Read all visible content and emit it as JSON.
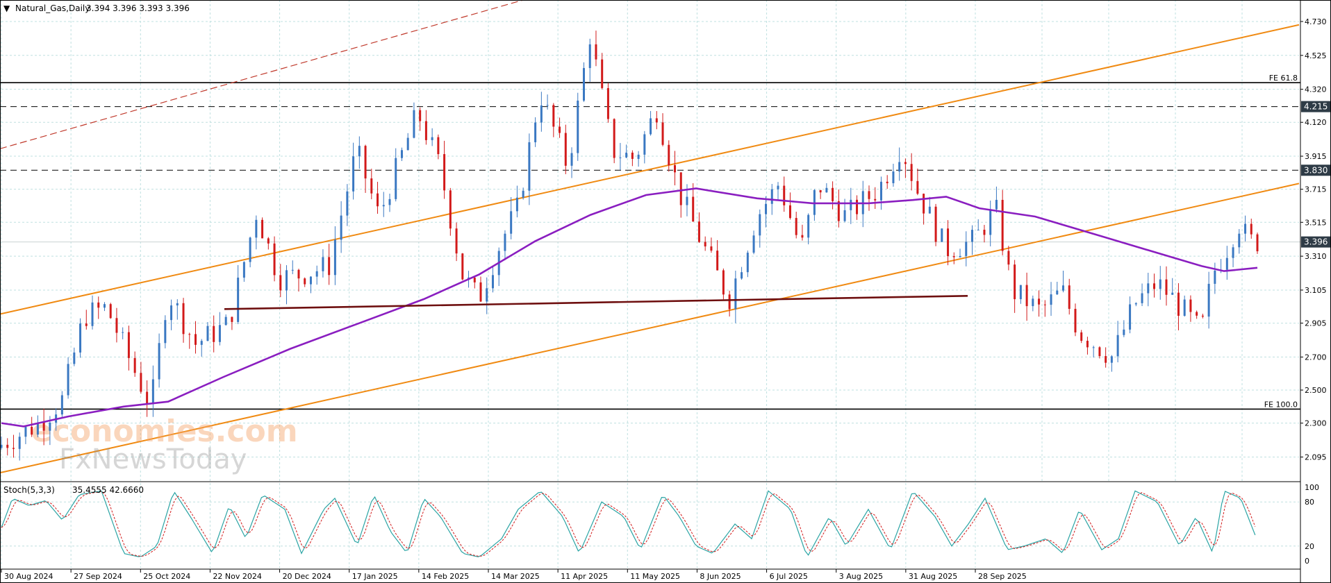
{
  "header": {
    "symbol_title": "Natural_Gas,Daily",
    "ohlc": "3.394 3.396 3.393 3.396",
    "dropdown_glyph": "▼"
  },
  "watermark": {
    "line1": "economies.com",
    "line2": "FxNewsToday"
  },
  "colors": {
    "bull": "#3a78c2",
    "bear": "#d21a1a",
    "ma": "#8a1ec0",
    "channel": "#f08a12",
    "support": "#6e0f0f",
    "upper_dash": "#c0392b",
    "stoch_main": "#2aa4a4",
    "stoch_signal": "#d21a1a",
    "price_tag": "#2e3b46"
  },
  "chart_data": [
    {
      "type": "candlestick",
      "title": "Natural_Gas,Daily",
      "ylim": [
        1.95,
        4.86
      ],
      "y_ticks": [
        "4.730",
        "4.525",
        "4.320",
        "4.120",
        "3.915",
        "3.715",
        "3.515",
        "3.310",
        "3.105",
        "2.905",
        "2.700",
        "2.500",
        "2.300",
        "2.095"
      ],
      "x_ticks": [
        "30 Aug 2024",
        "27 Sep 2024",
        "25 Oct 2024",
        "22 Nov 2024",
        "20 Dec 2024",
        "17 Jan 2025",
        "14 Feb 2025",
        "14 Mar 2025",
        "11 Apr 2025",
        "11 May 2025",
        "8 Jun 2025",
        "6 Jul 2025",
        "3 Aug 2025",
        "31 Aug 2025",
        "28 Sep 2025"
      ],
      "last_price": "3.396",
      "levels": [
        {
          "label": "FE 61.8",
          "value": 4.36,
          "style": "solid"
        },
        {
          "label": "4.215",
          "value": 4.215,
          "style": "dashed",
          "tag": true
        },
        {
          "label": "3.830",
          "value": 3.83,
          "style": "dashed",
          "tag": true
        },
        {
          "label": "FE 100.0",
          "value": 2.385,
          "style": "solid"
        }
      ],
      "trendlines": [
        {
          "name": "channel-upper",
          "points": [
            [
              "Aug 2024",
              2.96
            ],
            [
              "Oct 2025",
              4.71
            ]
          ]
        },
        {
          "name": "channel-lower",
          "points": [
            [
              "Aug 2024",
              2.0
            ],
            [
              "Oct 2025",
              3.75
            ]
          ]
        },
        {
          "name": "upper-dashed",
          "points": [
            [
              "Aug 2024",
              3.96
            ],
            [
              "Mar 2025",
              4.88
            ]
          ]
        },
        {
          "name": "support",
          "points": [
            [
              "Nov 2024",
              2.99
            ],
            [
              "Oct 2025",
              3.07
            ]
          ]
        }
      ],
      "moving_average": [
        [
          0,
          2.3
        ],
        [
          20,
          2.28
        ],
        [
          60,
          2.34
        ],
        [
          110,
          2.4
        ],
        [
          150,
          2.43
        ],
        [
          200,
          2.58
        ],
        [
          260,
          2.75
        ],
        [
          320,
          2.9
        ],
        [
          380,
          3.05
        ],
        [
          430,
          3.2
        ],
        [
          480,
          3.4
        ],
        [
          530,
          3.56
        ],
        [
          580,
          3.68
        ],
        [
          625,
          3.72
        ],
        [
          680,
          3.66
        ],
        [
          730,
          3.63
        ],
        [
          780,
          3.63
        ],
        [
          820,
          3.65
        ],
        [
          850,
          3.67
        ],
        [
          880,
          3.6
        ],
        [
          930,
          3.55
        ],
        [
          990,
          3.43
        ],
        [
          1040,
          3.33
        ],
        [
          1080,
          3.25
        ],
        [
          1100,
          3.22
        ],
        [
          1130,
          3.24
        ]
      ],
      "candle_path": [
        [
          0,
          2.15
        ],
        [
          40,
          2.3
        ],
        [
          60,
          2.44
        ],
        [
          80,
          2.95
        ],
        [
          100,
          3.0
        ],
        [
          125,
          2.62
        ],
        [
          140,
          2.4
        ],
        [
          155,
          3.1
        ],
        [
          180,
          2.78
        ],
        [
          210,
          2.9
        ],
        [
          235,
          3.58
        ],
        [
          255,
          3.18
        ],
        [
          275,
          3.2
        ],
        [
          300,
          3.25
        ],
        [
          325,
          3.95
        ],
        [
          345,
          3.55
        ],
        [
          380,
          4.18
        ],
        [
          400,
          3.85
        ],
        [
          420,
          3.2
        ],
        [
          435,
          3.05
        ],
        [
          455,
          3.4
        ],
        [
          470,
          3.6
        ],
        [
          490,
          4.3
        ],
        [
          515,
          3.85
        ],
        [
          535,
          4.65
        ],
        [
          555,
          3.95
        ],
        [
          575,
          3.9
        ],
        [
          595,
          4.2
        ],
        [
          615,
          3.7
        ],
        [
          635,
          3.4
        ],
        [
          660,
          3.05
        ],
        [
          685,
          3.55
        ],
        [
          705,
          3.75
        ],
        [
          725,
          3.35
        ],
        [
          740,
          3.75
        ],
        [
          765,
          3.55
        ],
        [
          795,
          3.72
        ],
        [
          815,
          3.98
        ],
        [
          830,
          3.7
        ],
        [
          855,
          3.35
        ],
        [
          880,
          3.4
        ],
        [
          900,
          3.6
        ],
        [
          915,
          3.1
        ],
        [
          940,
          2.98
        ],
        [
          960,
          3.1
        ],
        [
          975,
          2.85
        ],
        [
          1005,
          2.7
        ],
        [
          1025,
          3.02
        ],
        [
          1045,
          3.15
        ],
        [
          1060,
          3.05
        ],
        [
          1085,
          2.85
        ],
        [
          1095,
          3.2
        ],
        [
          1110,
          3.38
        ],
        [
          1118,
          3.52
        ],
        [
          1128,
          3.4
        ]
      ],
      "candle_count": 208
    },
    {
      "type": "line",
      "title": "Stoch(5,3,3)",
      "values_readout": "35.4555 42.6660",
      "ylim": [
        0,
        100
      ],
      "y_ticks": [
        "100",
        "80",
        "20",
        "0"
      ],
      "series": [
        {
          "name": "Stoch(5,3,3)",
          "wave": [
            [
              0,
              45
            ],
            [
              10,
              85
            ],
            [
              25,
              75
            ],
            [
              40,
              82
            ],
            [
              55,
              55
            ],
            [
              70,
              90
            ],
            [
              90,
              95
            ],
            [
              110,
              10
            ],
            [
              125,
              5
            ],
            [
              140,
              20
            ],
            [
              155,
              95
            ],
            [
              170,
              60
            ],
            [
              190,
              10
            ],
            [
              205,
              75
            ],
            [
              220,
              30
            ],
            [
              235,
              90
            ],
            [
              255,
              70
            ],
            [
              270,
              10
            ],
            [
              290,
              70
            ],
            [
              300,
              85
            ],
            [
              320,
              20
            ],
            [
              335,
              90
            ],
            [
              350,
              40
            ],
            [
              365,
              10
            ],
            [
              380,
              85
            ],
            [
              395,
              60
            ],
            [
              415,
              10
            ],
            [
              430,
              5
            ],
            [
              450,
              30
            ],
            [
              465,
              70
            ],
            [
              485,
              95
            ],
            [
              505,
              60
            ],
            [
              520,
              10
            ],
            [
              540,
              80
            ],
            [
              560,
              60
            ],
            [
              575,
              15
            ],
            [
              595,
              90
            ],
            [
              610,
              60
            ],
            [
              625,
              20
            ],
            [
              640,
              10
            ],
            [
              660,
              50
            ],
            [
              675,
              30
            ],
            [
              690,
              95
            ],
            [
              710,
              70
            ],
            [
              725,
              5
            ],
            [
              745,
              60
            ],
            [
              760,
              20
            ],
            [
              780,
              70
            ],
            [
              800,
              15
            ],
            [
              820,
              95
            ],
            [
              840,
              60
            ],
            [
              855,
              20
            ],
            [
              870,
              50
            ],
            [
              885,
              85
            ],
            [
              905,
              15
            ],
            [
              920,
              20
            ],
            [
              940,
              30
            ],
            [
              955,
              10
            ],
            [
              970,
              70
            ],
            [
              990,
              15
            ],
            [
              1005,
              30
            ],
            [
              1020,
              95
            ],
            [
              1040,
              80
            ],
            [
              1060,
              20
            ],
            [
              1075,
              60
            ],
            [
              1090,
              10
            ],
            [
              1100,
              95
            ],
            [
              1115,
              85
            ],
            [
              1128,
              35
            ]
          ]
        }
      ]
    }
  ]
}
